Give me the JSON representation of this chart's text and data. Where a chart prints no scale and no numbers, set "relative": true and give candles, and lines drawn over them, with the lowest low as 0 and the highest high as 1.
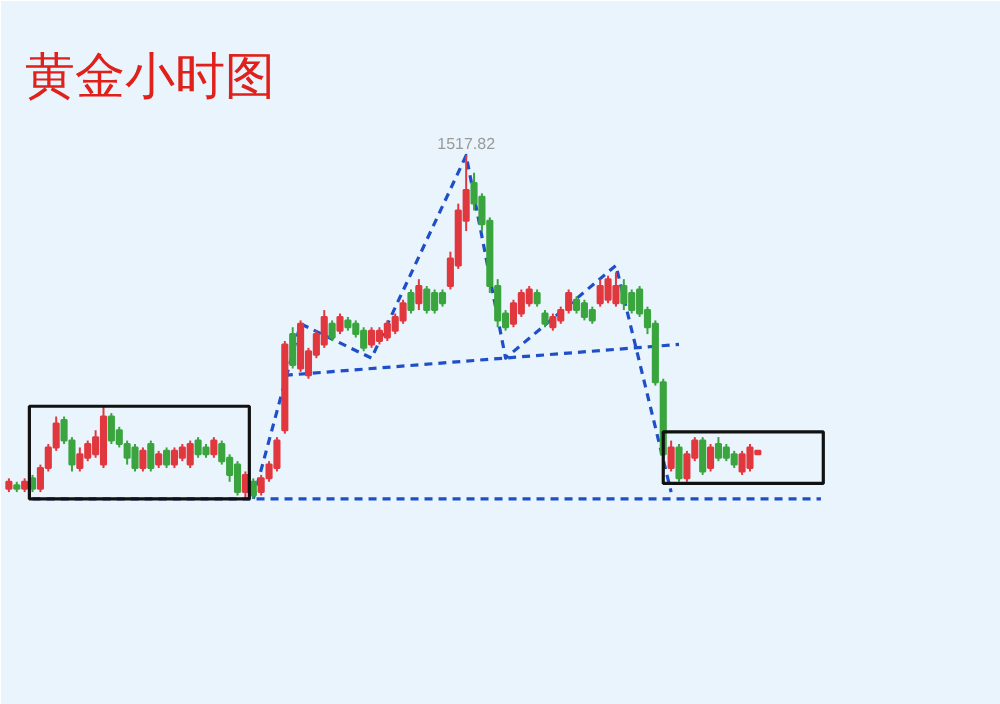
{
  "chart_data": {
    "type": "candlestick",
    "title": "黄金小时图",
    "relative": true,
    "grid": false,
    "annotations": [
      {
        "text": "1517.82",
        "y": 1.0
      }
    ],
    "categories": [
      null,
      null,
      null,
      null,
      null,
      null,
      null,
      null,
      null,
      null,
      null,
      null,
      null,
      null,
      null,
      null,
      null,
      null,
      null,
      null,
      null,
      null,
      null,
      null,
      null,
      null,
      null,
      null,
      null,
      null,
      null,
      null,
      null,
      null,
      null,
      null,
      null,
      null,
      null,
      null,
      null,
      null,
      null,
      null,
      null,
      null,
      null,
      null,
      null,
      null,
      null,
      null,
      null,
      null,
      null,
      null,
      null,
      null,
      null,
      null,
      null,
      null,
      null,
      null,
      null,
      null,
      null,
      null,
      null,
      null,
      null,
      null,
      null,
      null,
      null,
      null,
      null,
      null,
      null,
      null,
      null,
      null,
      null,
      null,
      null,
      null,
      null,
      null,
      null,
      null,
      null,
      null,
      null,
      null,
      null,
      null,
      null,
      null,
      null,
      null,
      null,
      null,
      null,
      null
    ],
    "ohlc": [
      [
        0.03,
        0.06,
        0.02,
        0.05
      ],
      [
        0.04,
        0.05,
        0.02,
        0.03
      ],
      [
        0.03,
        0.06,
        0.02,
        0.05
      ],
      [
        0.06,
        0.07,
        0.02,
        0.03
      ],
      [
        0.03,
        0.1,
        0.02,
        0.09
      ],
      [
        0.09,
        0.16,
        0.08,
        0.15
      ],
      [
        0.15,
        0.24,
        0.14,
        0.22
      ],
      [
        0.23,
        0.24,
        0.16,
        0.17
      ],
      [
        0.17,
        0.18,
        0.08,
        0.1
      ],
      [
        0.09,
        0.15,
        0.08,
        0.13
      ],
      [
        0.12,
        0.17,
        0.11,
        0.16
      ],
      [
        0.13,
        0.2,
        0.12,
        0.18
      ],
      [
        0.1,
        0.27,
        0.09,
        0.24
      ],
      [
        0.24,
        0.25,
        0.16,
        0.17
      ],
      [
        0.2,
        0.21,
        0.15,
        0.16
      ],
      [
        0.16,
        0.17,
        0.1,
        0.12
      ],
      [
        0.15,
        0.16,
        0.08,
        0.09
      ],
      [
        0.09,
        0.15,
        0.08,
        0.14
      ],
      [
        0.16,
        0.17,
        0.08,
        0.09
      ],
      [
        0.1,
        0.14,
        0.09,
        0.13
      ],
      [
        0.14,
        0.15,
        0.09,
        0.1
      ],
      [
        0.1,
        0.15,
        0.09,
        0.14
      ],
      [
        0.12,
        0.16,
        0.11,
        0.15
      ],
      [
        0.1,
        0.17,
        0.09,
        0.16
      ],
      [
        0.17,
        0.18,
        0.12,
        0.13
      ],
      [
        0.15,
        0.16,
        0.12,
        0.13
      ],
      [
        0.13,
        0.18,
        0.12,
        0.17
      ],
      [
        0.16,
        0.17,
        0.1,
        0.11
      ],
      [
        0.12,
        0.13,
        0.05,
        0.07
      ],
      [
        0.1,
        0.11,
        0.01,
        0.02
      ],
      [
        0.02,
        0.08,
        0.0,
        0.07
      ],
      [
        0.05,
        0.06,
        0.0,
        0.01
      ],
      [
        0.02,
        0.07,
        0.01,
        0.06
      ],
      [
        0.06,
        0.11,
        0.05,
        0.1
      ],
      [
        0.09,
        0.18,
        0.08,
        0.17
      ],
      [
        0.2,
        0.46,
        0.19,
        0.45
      ],
      [
        0.48,
        0.5,
        0.38,
        0.39
      ],
      [
        0.38,
        0.52,
        0.37,
        0.51
      ],
      [
        0.36,
        0.44,
        0.35,
        0.43
      ],
      [
        0.42,
        0.49,
        0.41,
        0.48
      ],
      [
        0.45,
        0.55,
        0.44,
        0.53
      ],
      [
        0.51,
        0.52,
        0.46,
        0.47
      ],
      [
        0.49,
        0.54,
        0.48,
        0.53
      ],
      [
        0.52,
        0.53,
        0.49,
        0.5
      ],
      [
        0.51,
        0.52,
        0.47,
        0.48
      ],
      [
        0.49,
        0.5,
        0.43,
        0.44
      ],
      [
        0.45,
        0.5,
        0.44,
        0.49
      ],
      [
        0.46,
        0.5,
        0.45,
        0.49
      ],
      [
        0.47,
        0.52,
        0.46,
        0.51
      ],
      [
        0.49,
        0.54,
        0.48,
        0.53
      ],
      [
        0.52,
        0.58,
        0.51,
        0.57
      ],
      [
        0.6,
        0.61,
        0.54,
        0.55
      ],
      [
        0.57,
        0.64,
        0.55,
        0.62
      ],
      [
        0.61,
        0.62,
        0.54,
        0.55
      ],
      [
        0.6,
        0.61,
        0.54,
        0.55
      ],
      [
        0.6,
        0.61,
        0.56,
        0.57
      ],
      [
        0.62,
        0.72,
        0.61,
        0.7
      ],
      [
        0.68,
        0.86,
        0.67,
        0.84
      ],
      [
        0.81,
        1.0,
        0.78,
        0.9
      ],
      [
        0.92,
        0.95,
        0.84,
        0.86
      ],
      [
        0.88,
        0.89,
        0.78,
        0.8
      ],
      [
        0.81,
        0.82,
        0.6,
        0.62
      ],
      [
        0.62,
        0.64,
        0.5,
        0.52
      ],
      [
        0.54,
        0.55,
        0.49,
        0.5
      ],
      [
        0.51,
        0.58,
        0.5,
        0.57
      ],
      [
        0.54,
        0.61,
        0.53,
        0.6
      ],
      [
        0.57,
        0.62,
        0.56,
        0.61
      ],
      [
        0.6,
        0.61,
        0.56,
        0.57
      ],
      [
        0.54,
        0.55,
        0.5,
        0.51
      ],
      [
        0.5,
        0.54,
        0.49,
        0.53
      ],
      [
        0.52,
        0.56,
        0.51,
        0.55
      ],
      [
        0.55,
        0.61,
        0.54,
        0.6
      ],
      [
        0.58,
        0.59,
        0.54,
        0.55
      ],
      [
        0.57,
        0.58,
        0.52,
        0.53
      ],
      [
        0.55,
        0.56,
        0.51,
        0.52
      ],
      [
        0.57,
        0.64,
        0.56,
        0.62
      ],
      [
        0.58,
        0.65,
        0.57,
        0.64
      ],
      [
        0.57,
        0.66,
        0.56,
        0.62
      ],
      [
        0.62,
        0.64,
        0.55,
        0.57
      ],
      [
        0.6,
        0.61,
        0.54,
        0.55
      ],
      [
        0.61,
        0.62,
        0.53,
        0.54
      ],
      [
        0.55,
        0.56,
        0.48,
        0.5
      ],
      [
        0.51,
        0.52,
        0.33,
        0.34
      ],
      [
        0.34,
        0.35,
        0.12,
        0.13
      ],
      [
        0.09,
        0.17,
        0.08,
        0.15
      ],
      [
        0.15,
        0.16,
        0.05,
        0.06
      ],
      [
        0.06,
        0.14,
        0.05,
        0.13
      ],
      [
        0.12,
        0.18,
        0.11,
        0.17
      ],
      [
        0.17,
        0.18,
        0.07,
        0.08
      ],
      [
        0.09,
        0.16,
        0.08,
        0.15
      ],
      [
        0.16,
        0.18,
        0.11,
        0.12
      ],
      [
        0.15,
        0.16,
        0.11,
        0.12
      ],
      [
        0.13,
        0.14,
        0.09,
        0.1
      ],
      [
        0.08,
        0.14,
        0.07,
        0.13
      ],
      [
        0.09,
        0.16,
        0.08,
        0.15
      ],
      [
        0.13,
        0.14,
        0.13,
        0.14
      ],
      null,
      null,
      null,
      null,
      null,
      null,
      null,
      null
    ],
    "colors": [
      "#e0383e",
      "#3aa53e",
      "#e0383e",
      "#3aa53e",
      "#e0383e",
      "#e0383e",
      "#e0383e",
      "#3aa53e",
      "#3aa53e",
      "#e0383e",
      "#e0383e",
      "#e0383e",
      "#e0383e",
      "#3aa53e",
      "#3aa53e",
      "#3aa53e",
      "#3aa53e",
      "#e0383e",
      "#3aa53e",
      "#e0383e",
      "#3aa53e",
      "#e0383e",
      "#e0383e",
      "#e0383e",
      "#3aa53e",
      "#3aa53e",
      "#e0383e",
      "#3aa53e",
      "#3aa53e",
      "#3aa53e",
      "#e0383e",
      "#3aa53e",
      "#e0383e",
      "#e0383e",
      "#e0383e",
      "#e0383e",
      "#3aa53e",
      "#e0383e",
      "#e0383e",
      "#e0383e",
      "#e0383e",
      "#3aa53e",
      "#e0383e",
      "#3aa53e",
      "#3aa53e",
      "#3aa53e",
      "#e0383e",
      "#e0383e",
      "#e0383e",
      "#e0383e",
      "#e0383e",
      "#3aa53e",
      "#e0383e",
      "#3aa53e",
      "#3aa53e",
      "#3aa53e",
      "#e0383e",
      "#e0383e",
      "#e0383e",
      "#3aa53e",
      "#3aa53e",
      "#3aa53e",
      "#3aa53e",
      "#3aa53e",
      "#e0383e",
      "#e0383e",
      "#e0383e",
      "#3aa53e",
      "#3aa53e",
      "#e0383e",
      "#e0383e",
      "#e0383e",
      "#3aa53e",
      "#3aa53e",
      "#3aa53e",
      "#e0383e",
      "#e0383e",
      "#e0383e",
      "#3aa53e",
      "#3aa53e",
      "#3aa53e",
      "#3aa53e",
      "#3aa53e",
      "#3aa53e",
      "#e0383e",
      "#3aa53e",
      "#e0383e",
      "#e0383e",
      "#3aa53e",
      "#e0383e",
      "#3aa53e",
      "#3aa53e",
      "#3aa53e",
      "#e0383e",
      "#e0383e",
      "#e0383e",
      null,
      null,
      null,
      null,
      null,
      null,
      null,
      null
    ],
    "series": [
      {
        "type": "line",
        "line_style": "dashed",
        "color": "#1f4fc8",
        "values": [
          null,
          null,
          null,
          null,
          null,
          null,
          null,
          null,
          null,
          null,
          null,
          null,
          null,
          null,
          null,
          null,
          null,
          null,
          null,
          null,
          null,
          null,
          null,
          null,
          null,
          null,
          null,
          null,
          null,
          null,
          null,
          0,
          null,
          null,
          null,
          null,
          null,
          0.51,
          null,
          null,
          null,
          null,
          null,
          null,
          null,
          null,
          0.41,
          null,
          null,
          null,
          null,
          null,
          null,
          null,
          null,
          null,
          null,
          null,
          1.0,
          null,
          null,
          null,
          null,
          0.41,
          null,
          null,
          null,
          null,
          null,
          null,
          null,
          null,
          null,
          null,
          null,
          null,
          null,
          0.68,
          null,
          null,
          null,
          null,
          null,
          null,
          0.02,
          null,
          null,
          null,
          null,
          null,
          null,
          null,
          null,
          null,
          null,
          null,
          null,
          null,
          null,
          null,
          null,
          null,
          null,
          null
        ]
      },
      {
        "type": "line",
        "line_style": "dashed",
        "color": "#1f4fc8",
        "values": [
          null,
          null,
          null,
          null,
          null,
          null,
          null,
          null,
          null,
          null,
          null,
          null,
          null,
          null,
          null,
          null,
          null,
          null,
          null,
          null,
          null,
          null,
          null,
          null,
          null,
          null,
          null,
          null,
          null,
          null,
          null,
          null,
          null,
          null,
          null,
          0.36,
          null,
          null,
          null,
          null,
          null,
          null,
          null,
          null,
          null,
          null,
          null,
          null,
          null,
          null,
          null,
          null,
          null,
          null,
          null,
          null,
          null,
          null,
          null,
          null,
          null,
          null,
          null,
          null,
          null,
          null,
          null,
          null,
          null,
          null,
          null,
          null,
          null,
          null,
          null,
          null,
          null,
          null,
          null,
          null,
          null,
          null,
          null,
          null,
          null,
          0.45,
          null,
          null,
          null,
          null,
          null,
          null,
          null,
          null,
          null,
          null,
          null,
          null,
          null,
          null,
          null,
          null,
          null,
          null
        ]
      },
      {
        "type": "line",
        "line_style": "dashed",
        "color": "#1f4fc8",
        "values": [
          null,
          null,
          null,
          0,
          null,
          null,
          null,
          null,
          null,
          null,
          null,
          null,
          null,
          null,
          null,
          null,
          null,
          null,
          null,
          null,
          null,
          null,
          null,
          null,
          null,
          null,
          null,
          null,
          null,
          null,
          null,
          null,
          null,
          null,
          null,
          null,
          null,
          null,
          null,
          null,
          null,
          null,
          null,
          null,
          null,
          null,
          null,
          null,
          null,
          null,
          null,
          null,
          null,
          null,
          null,
          null,
          null,
          null,
          null,
          null,
          null,
          null,
          null,
          null,
          null,
          null,
          null,
          null,
          null,
          null,
          null,
          null,
          null,
          null,
          null,
          null,
          null,
          null,
          null,
          null,
          null,
          null,
          null,
          null,
          null,
          null,
          null,
          null,
          null,
          null,
          null,
          null,
          null,
          null,
          null,
          null,
          null,
          null,
          null,
          null,
          null,
          null,
          null,
          0
        ]
      }
    ]
  }
}
